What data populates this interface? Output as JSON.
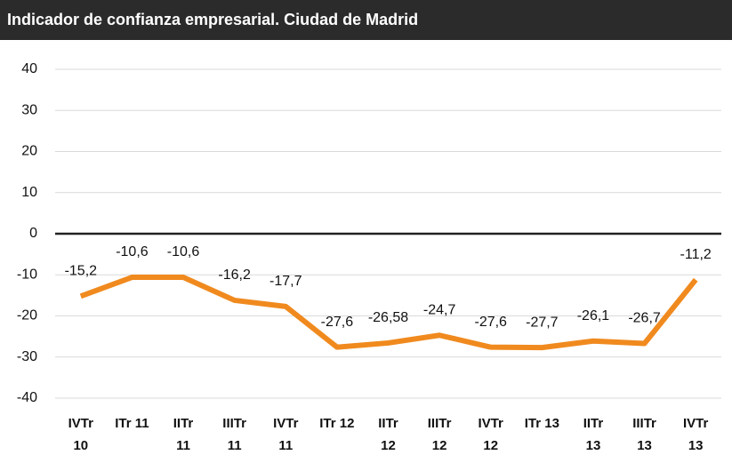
{
  "chart_data": {
    "type": "line",
    "title": "Indicador de confianza empresarial. Ciudad de Madrid",
    "categories": [
      "IVTr 10",
      "ITr 11",
      "IITr 11",
      "IIITr 11",
      "IVTr 11",
      "ITr 12",
      "IITr 12",
      "IIITr 12",
      "IVTr 12",
      "ITr 13",
      "IITr 13",
      "IIITr 13",
      "IVTr 13"
    ],
    "series": [
      {
        "name": "Indicador de confianza empresarial",
        "color": "#f08a1e",
        "values": [
          -15.2,
          -10.6,
          -10.6,
          -16.2,
          -17.7,
          -27.6,
          -26.58,
          -24.7,
          -27.6,
          -27.7,
          -26.1,
          -26.7,
          -11.2
        ],
        "value_labels": [
          "-15,2",
          "-10,6",
          "-10,6",
          "-16,2",
          "-17,7",
          "-27,6",
          "-26,58",
          "-24,7",
          "-27,6",
          "-27,7",
          "-26,1",
          "-26,7",
          "-11,2"
        ]
      }
    ],
    "ylim": [
      -40,
      40
    ],
    "yticks": [
      -40,
      -30,
      -20,
      -10,
      0,
      10,
      20,
      30,
      40
    ],
    "grid": true
  }
}
